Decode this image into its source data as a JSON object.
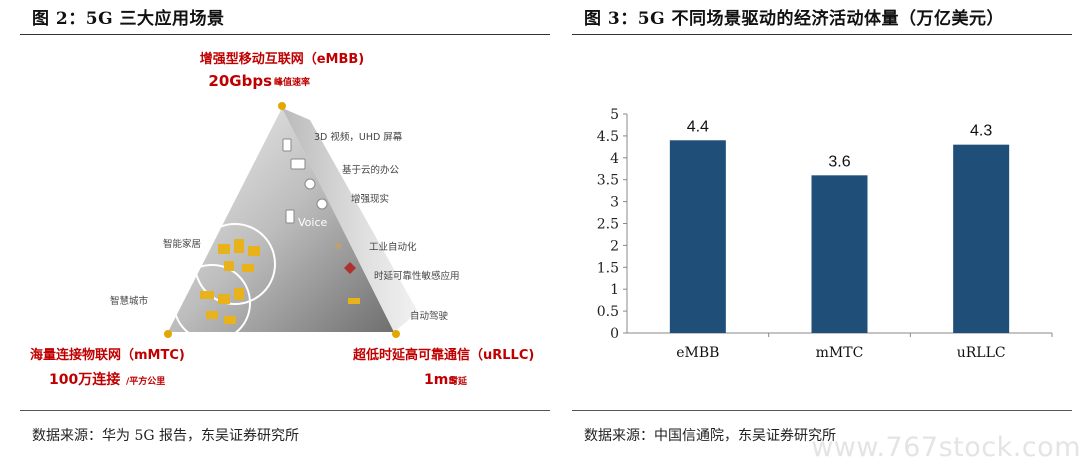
{
  "left_figure": {
    "title": "图 2：5G 三大应用场景",
    "source": "数据来源：华为 5G 报告，东吴证券研究所",
    "top": {
      "label": "增强型移动互联网（eMBB)",
      "value": "20Gbps",
      "suffix": "峰值速率"
    },
    "left": {
      "label": "海量连接物联网（mMTC)",
      "value": "100万连接",
      "suffix": "/平方公里"
    },
    "right": {
      "label": "超低时延高可靠通信（uRLLC)",
      "value": "1ms",
      "suffix": "时延"
    },
    "apps": [
      "3D 视频，UHD 屏幕",
      "基于云的办公",
      "增强现实",
      "Voice",
      "工业自动化",
      "时延可靠性敏感应用",
      "自动驾驶",
      "智能家居",
      "智慧城市"
    ]
  },
  "right_figure": {
    "title": "图 3：5G 不同场景驱动的经济活动体量（万亿美元）",
    "source": "数据来源：中国信通院，东吴证券研究所"
  },
  "chart_data": {
    "type": "bar",
    "categories": [
      "eMBB",
      "mMTC",
      "uRLLC"
    ],
    "values": [
      4.4,
      3.6,
      4.3
    ],
    "ylim": [
      0,
      5
    ],
    "yticks": [
      "0",
      "0.5",
      "1",
      "1.5",
      "2",
      "2.5",
      "3",
      "3.5",
      "4",
      "4.5",
      "5"
    ],
    "bar_color": "#1f4e79",
    "grid": false
  },
  "watermark": "www.767stock.com"
}
